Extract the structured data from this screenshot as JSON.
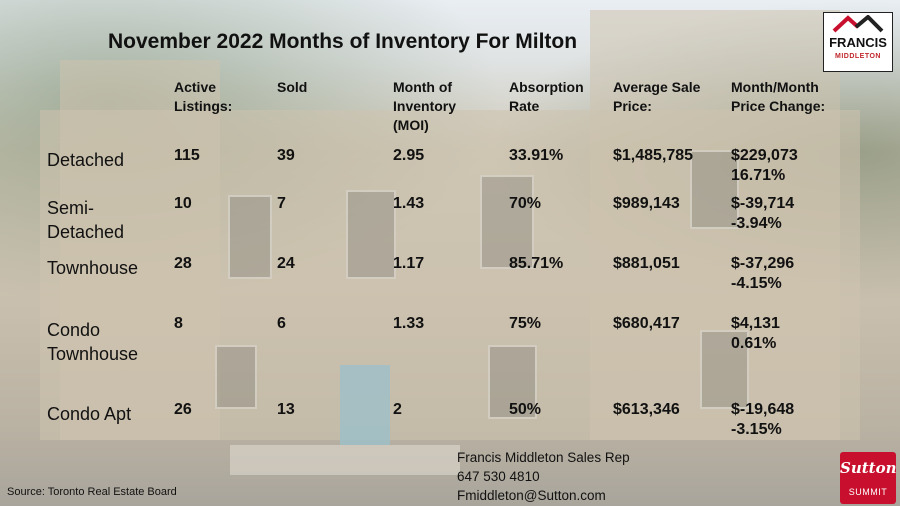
{
  "title": "November 2022 Months of Inventory For Milton",
  "headers": {
    "active_listings": [
      "Active",
      "Listings:"
    ],
    "sold": "Sold",
    "moi": [
      "Month of",
      "Inventory",
      "(MOI)"
    ],
    "absorption": [
      "Absorption",
      "Rate"
    ],
    "avg_price": [
      "Average Sale",
      "Price:"
    ],
    "change": [
      "Month/Month",
      "Price Change:"
    ]
  },
  "rows": [
    {
      "label": [
        "Detached"
      ],
      "active": "115",
      "sold": "39",
      "moi": "2.95",
      "absorption": "33.91%",
      "avg_price": "$1,485,785",
      "change": [
        "$229,073",
        "16.71%"
      ]
    },
    {
      "label": [
        "Semi-",
        "Detached"
      ],
      "active": "10",
      "sold": "7",
      "moi": "1.43",
      "absorption": "70%",
      "avg_price": "$989,143",
      "change": [
        "$-39,714",
        "-3.94%"
      ]
    },
    {
      "label": [
        "Townhouse"
      ],
      "active": "28",
      "sold": "24",
      "moi": "1.17",
      "absorption": "85.71%",
      "avg_price": "$881,051",
      "change": [
        "$-37,296",
        "-4.15%"
      ]
    },
    {
      "label": [
        "Condo",
        "Townhouse"
      ],
      "active": "8",
      "sold": "6",
      "moi": "1.33",
      "absorption": "75%",
      "avg_price": "$680,417",
      "change": [
        "$4,131",
        "0.61%"
      ]
    },
    {
      "label": [
        "Condo Apt"
      ],
      "active": "26",
      "sold": "13",
      "moi": "2",
      "absorption": "50%",
      "avg_price": "$613,346",
      "change": [
        "$-19,648",
        "-3.15%"
      ]
    }
  ],
  "source": "Source: Toronto Real Estate Board",
  "contact": [
    "Francis Middleton Sales Rep",
    "647 530 4810",
    "Fmiddleton@Sutton.com"
  ],
  "logo_francis": {
    "name": "FRANCIS",
    "sub": "MIDDLETON"
  },
  "logo_sutton": {
    "brand": "Sutton",
    "sub": "SUMMIT"
  },
  "colors": {
    "brand_red": "#c8102e",
    "text": "#111111"
  }
}
